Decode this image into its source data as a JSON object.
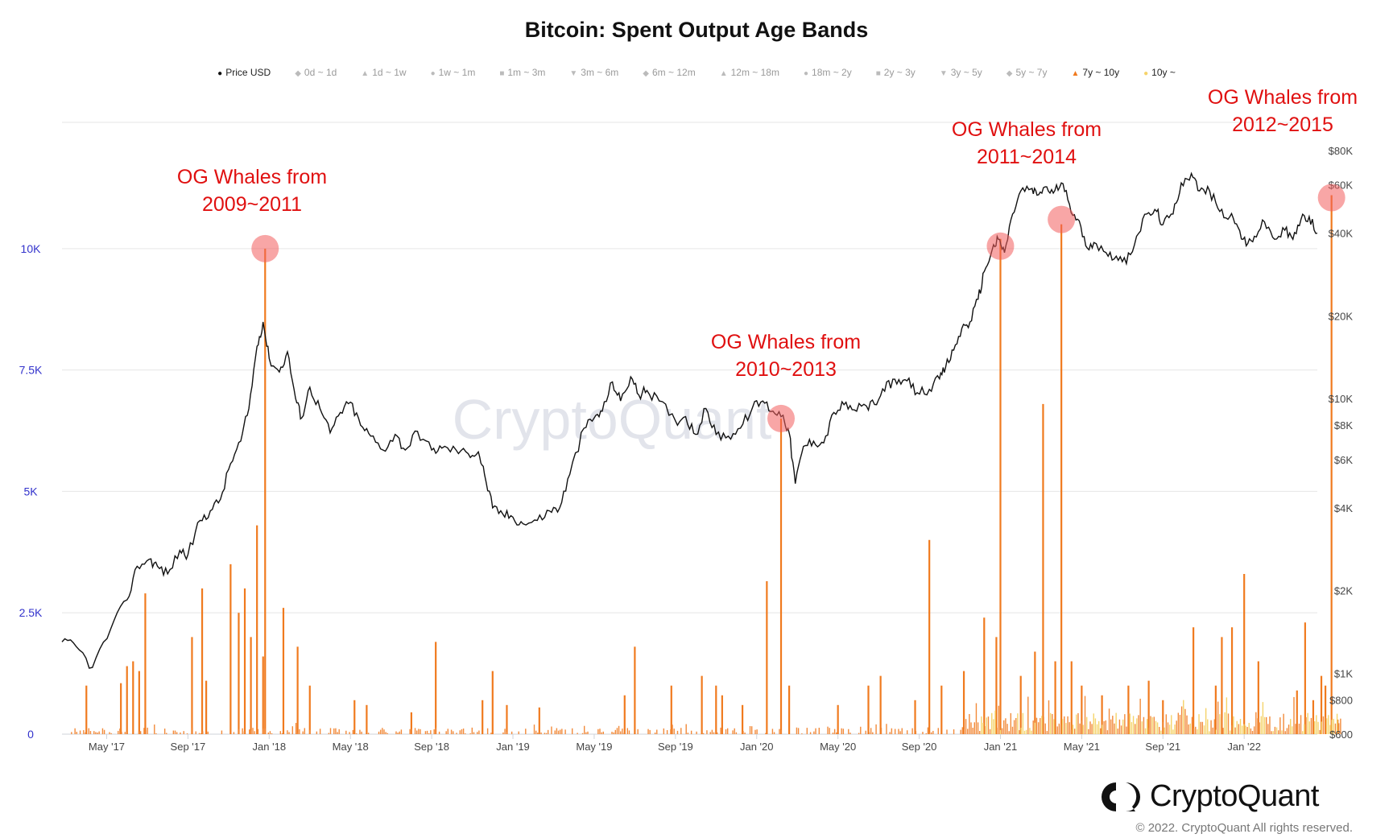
{
  "chart_data": {
    "type": "line",
    "title": "Bitcoin: Spent Output Age Bands",
    "legend_position": "top-center",
    "legend": [
      {
        "label": "Price USD",
        "marker": "●",
        "color": "#111111",
        "active": true
      },
      {
        "label": "0d ~ 1d",
        "marker": "◆",
        "color": "#bbbbbb",
        "active": false
      },
      {
        "label": "1d ~ 1w",
        "marker": "▲",
        "color": "#bbbbbb",
        "active": false
      },
      {
        "label": "1w ~ 1m",
        "marker": "●",
        "color": "#bbbbbb",
        "active": false
      },
      {
        "label": "1m ~ 3m",
        "marker": "■",
        "color": "#bbbbbb",
        "active": false
      },
      {
        "label": "3m ~ 6m",
        "marker": "▼",
        "color": "#bbbbbb",
        "active": false
      },
      {
        "label": "6m ~ 12m",
        "marker": "◆",
        "color": "#bbbbbb",
        "active": false
      },
      {
        "label": "12m ~ 18m",
        "marker": "▲",
        "color": "#bbbbbb",
        "active": false
      },
      {
        "label": "18m ~ 2y",
        "marker": "●",
        "color": "#bbbbbb",
        "active": false
      },
      {
        "label": "2y ~ 3y",
        "marker": "■",
        "color": "#bbbbbb",
        "active": false
      },
      {
        "label": "3y ~ 5y",
        "marker": "▼",
        "color": "#bbbbbb",
        "active": false
      },
      {
        "label": "5y ~ 7y",
        "marker": "◆",
        "color": "#bbbbbb",
        "active": false
      },
      {
        "label": "7y ~ 10y",
        "marker": "▲",
        "color": "#f07a1e",
        "active": true
      },
      {
        "label": "10y ~",
        "marker": "●",
        "color": "#f5d36a",
        "active": true
      }
    ],
    "x_ticks": [
      "May '17",
      "Sep '17",
      "Jan '18",
      "May '18",
      "Sep '18",
      "Jan '19",
      "May '19",
      "Sep '19",
      "Jan '20",
      "May '20",
      "Sep '20",
      "Jan '21",
      "May '21",
      "Sep '21",
      "Jan '22"
    ],
    "x_tick_positions_months": [
      1,
      5,
      9,
      13,
      17,
      21,
      25,
      29,
      33,
      37,
      41,
      45,
      49,
      53,
      57
    ],
    "x_range_months": [
      -1.2,
      60.6
    ],
    "x_origin": "Apr 2017",
    "y_left": {
      "ticks": [
        "0",
        "2.5K",
        "5K",
        "7.5K",
        "10K"
      ],
      "values": [
        0,
        2500,
        5000,
        7500,
        10000
      ],
      "range": [
        0,
        12600
      ]
    },
    "y_right": {
      "scale": "log",
      "ticks": [
        "$600",
        "$800",
        "$1K",
        "$2K",
        "$4K",
        "$6K",
        "$8K",
        "$10K",
        "$20K",
        "$40K",
        "$60K",
        "$80K"
      ],
      "values": [
        600,
        800,
        1000,
        2000,
        4000,
        6000,
        8000,
        10000,
        20000,
        40000,
        60000,
        80000
      ],
      "range": [
        600,
        80000
      ]
    },
    "series": [
      {
        "name": "Price USD",
        "axis": "right",
        "color": "#111111",
        "points": [
          [
            -1.2,
            1300
          ],
          [
            -0.5,
            1250
          ],
          [
            0.3,
            1050
          ],
          [
            1.2,
            1450
          ],
          [
            2.0,
            1850
          ],
          [
            2.5,
            2450
          ],
          [
            3.1,
            2600
          ],
          [
            3.5,
            2450
          ],
          [
            4.0,
            2300
          ],
          [
            4.6,
            2800
          ],
          [
            5.0,
            2700
          ],
          [
            5.6,
            3600
          ],
          [
            6.1,
            3900
          ],
          [
            6.6,
            4300
          ],
          [
            7.1,
            5800
          ],
          [
            7.6,
            7000
          ],
          [
            8.0,
            9200
          ],
          [
            8.4,
            15500
          ],
          [
            8.7,
            19000
          ],
          [
            9.0,
            14000
          ],
          [
            9.5,
            12500
          ],
          [
            9.9,
            14800
          ],
          [
            10.3,
            10000
          ],
          [
            10.6,
            8500
          ],
          [
            11.0,
            11000
          ],
          [
            11.5,
            9200
          ],
          [
            12.0,
            7500
          ],
          [
            12.5,
            8900
          ],
          [
            13.0,
            9700
          ],
          [
            13.5,
            8000
          ],
          [
            14.0,
            7300
          ],
          [
            14.6,
            6500
          ],
          [
            15.2,
            7400
          ],
          [
            15.7,
            6500
          ],
          [
            16.3,
            7600
          ],
          [
            17.0,
            6500
          ],
          [
            17.5,
            6600
          ],
          [
            18.2,
            6500
          ],
          [
            18.8,
            6300
          ],
          [
            19.3,
            6400
          ],
          [
            19.6,
            5300
          ],
          [
            20.0,
            4000
          ],
          [
            20.5,
            3800
          ],
          [
            21.0,
            3700
          ],
          [
            21.5,
            3500
          ],
          [
            22.2,
            3600
          ],
          [
            22.8,
            3900
          ],
          [
            23.3,
            4000
          ],
          [
            23.8,
            5300
          ],
          [
            24.5,
            7800
          ],
          [
            25.0,
            8500
          ],
          [
            25.4,
            9000
          ],
          [
            25.9,
            11500
          ],
          [
            26.3,
            9800
          ],
          [
            26.8,
            12000
          ],
          [
            27.2,
            10300
          ],
          [
            27.6,
            10700
          ],
          [
            28.2,
            9800
          ],
          [
            29.0,
            8300
          ],
          [
            29.5,
            8600
          ],
          [
            30.0,
            7400
          ],
          [
            30.5,
            9200
          ],
          [
            31.0,
            7400
          ],
          [
            31.6,
            7300
          ],
          [
            32.2,
            7800
          ],
          [
            32.8,
            9300
          ],
          [
            33.3,
            9800
          ],
          [
            33.8,
            9000
          ],
          [
            34.3,
            8700
          ],
          [
            34.6,
            7500
          ],
          [
            34.9,
            4900
          ],
          [
            35.3,
            6700
          ],
          [
            35.8,
            7000
          ],
          [
            36.3,
            6900
          ],
          [
            36.8,
            8900
          ],
          [
            37.3,
            9500
          ],
          [
            37.8,
            9100
          ],
          [
            38.4,
            9400
          ],
          [
            38.9,
            9500
          ],
          [
            39.4,
            11500
          ],
          [
            39.9,
            11300
          ],
          [
            40.4,
            11600
          ],
          [
            40.9,
            10500
          ],
          [
            41.5,
            10800
          ],
          [
            42.0,
            11800
          ],
          [
            42.3,
            13000
          ],
          [
            42.7,
            15000
          ],
          [
            43.1,
            18000
          ],
          [
            43.5,
            19000
          ],
          [
            43.9,
            23000
          ],
          [
            44.2,
            29000
          ],
          [
            44.6,
            35000
          ],
          [
            44.9,
            38000
          ],
          [
            45.2,
            34000
          ],
          [
            45.6,
            47000
          ],
          [
            46.0,
            57000
          ],
          [
            46.5,
            58000
          ],
          [
            46.8,
            55000
          ],
          [
            47.2,
            59000
          ],
          [
            47.6,
            56000
          ],
          [
            48.0,
            61000
          ],
          [
            48.4,
            51000
          ],
          [
            48.8,
            45000
          ],
          [
            49.2,
            36000
          ],
          [
            49.6,
            37000
          ],
          [
            50.2,
            34000
          ],
          [
            50.7,
            33000
          ],
          [
            51.2,
            31000
          ],
          [
            51.7,
            39000
          ],
          [
            52.2,
            47000
          ],
          [
            52.7,
            48000
          ],
          [
            53.0,
            43000
          ],
          [
            53.5,
            47000
          ],
          [
            53.9,
            61000
          ],
          [
            54.4,
            66000
          ],
          [
            54.8,
            57000
          ],
          [
            55.3,
            57000
          ],
          [
            55.8,
            48000
          ],
          [
            56.3,
            46000
          ],
          [
            56.7,
            42000
          ],
          [
            57.1,
            36000
          ],
          [
            57.5,
            39000
          ],
          [
            58.0,
            44000
          ],
          [
            58.5,
            38000
          ],
          [
            59.0,
            41000
          ],
          [
            59.4,
            38000
          ],
          [
            59.8,
            45000
          ],
          [
            60.2,
            46000
          ],
          [
            60.6,
            40000
          ]
        ]
      },
      {
        "name": "7y ~ 10y",
        "axis": "left",
        "color": "#f07a1e",
        "spikes": [
          [
            0.0,
            1000
          ],
          [
            1.7,
            1050
          ],
          [
            2.0,
            1400
          ],
          [
            2.3,
            1500
          ],
          [
            2.6,
            1300
          ],
          [
            2.9,
            2900
          ],
          [
            5.2,
            2000
          ],
          [
            5.7,
            3000
          ],
          [
            5.9,
            1100
          ],
          [
            7.1,
            3500
          ],
          [
            7.5,
            2500
          ],
          [
            7.8,
            3000
          ],
          [
            8.1,
            2000
          ],
          [
            8.7,
            1600
          ],
          [
            8.4,
            4300
          ],
          [
            8.8,
            10000
          ],
          [
            9.7,
            2600
          ],
          [
            10.4,
            1800
          ],
          [
            11.0,
            1000
          ],
          [
            13.2,
            700
          ],
          [
            13.8,
            600
          ],
          [
            16.0,
            450
          ],
          [
            17.2,
            1900
          ],
          [
            19.5,
            700
          ],
          [
            20.0,
            1300
          ],
          [
            20.7,
            600
          ],
          [
            22.3,
            550
          ],
          [
            26.5,
            800
          ],
          [
            27.0,
            1800
          ],
          [
            28.8,
            1000
          ],
          [
            30.3,
            1200
          ],
          [
            31.0,
            1000
          ],
          [
            31.3,
            800
          ],
          [
            32.3,
            600
          ],
          [
            33.5,
            3150
          ],
          [
            34.2,
            6500
          ],
          [
            34.6,
            1000
          ],
          [
            37.0,
            600
          ],
          [
            38.5,
            1000
          ],
          [
            39.1,
            1200
          ],
          [
            40.8,
            700
          ],
          [
            41.5,
            4000
          ],
          [
            42.1,
            1000
          ],
          [
            43.2,
            1300
          ],
          [
            44.2,
            2400
          ],
          [
            44.8,
            2000
          ],
          [
            45.0,
            10200
          ],
          [
            46.0,
            1200
          ],
          [
            46.7,
            1700
          ],
          [
            47.1,
            6800
          ],
          [
            47.7,
            1500
          ],
          [
            48.0,
            10500
          ],
          [
            48.5,
            1500
          ],
          [
            49.0,
            1000
          ],
          [
            50.0,
            800
          ],
          [
            51.3,
            1000
          ],
          [
            52.3,
            1100
          ],
          [
            53.0,
            700
          ],
          [
            54.5,
            2200
          ],
          [
            55.6,
            1000
          ],
          [
            55.9,
            2000
          ],
          [
            56.4,
            2200
          ],
          [
            57.0,
            3300
          ],
          [
            57.7,
            1500
          ],
          [
            59.6,
            900
          ],
          [
            60.0,
            2300
          ],
          [
            60.4,
            700
          ],
          [
            60.8,
            1200
          ],
          [
            61.0,
            1000
          ],
          [
            61.3,
            11100
          ],
          [
            61.6,
            300
          ]
        ]
      }
    ],
    "annotations": [
      {
        "text_line1": "OG Whales from",
        "text_line2": "2009~2011",
        "circle_month": 8.8,
        "circle_value": 10000
      },
      {
        "text_line1": "OG Whales from",
        "text_line2": "2010~2013",
        "circle_month": 34.2,
        "circle_value": 6500
      },
      {
        "text_line1": "OG Whales from",
        "text_line2": "2011~2014",
        "circle_month": 45.0,
        "circle_value": 10050,
        "circle2_month": 48.0,
        "circle2_value": 10600
      },
      {
        "text_line1": "OG Whales from",
        "text_line2": "2012~2015",
        "circle_month": 61.3,
        "circle_value": 11050
      }
    ]
  },
  "watermark": "CryptoQuant",
  "brand": {
    "name": "CryptoQuant",
    "copyright": "© 2022. CryptoQuant All rights reserved."
  }
}
